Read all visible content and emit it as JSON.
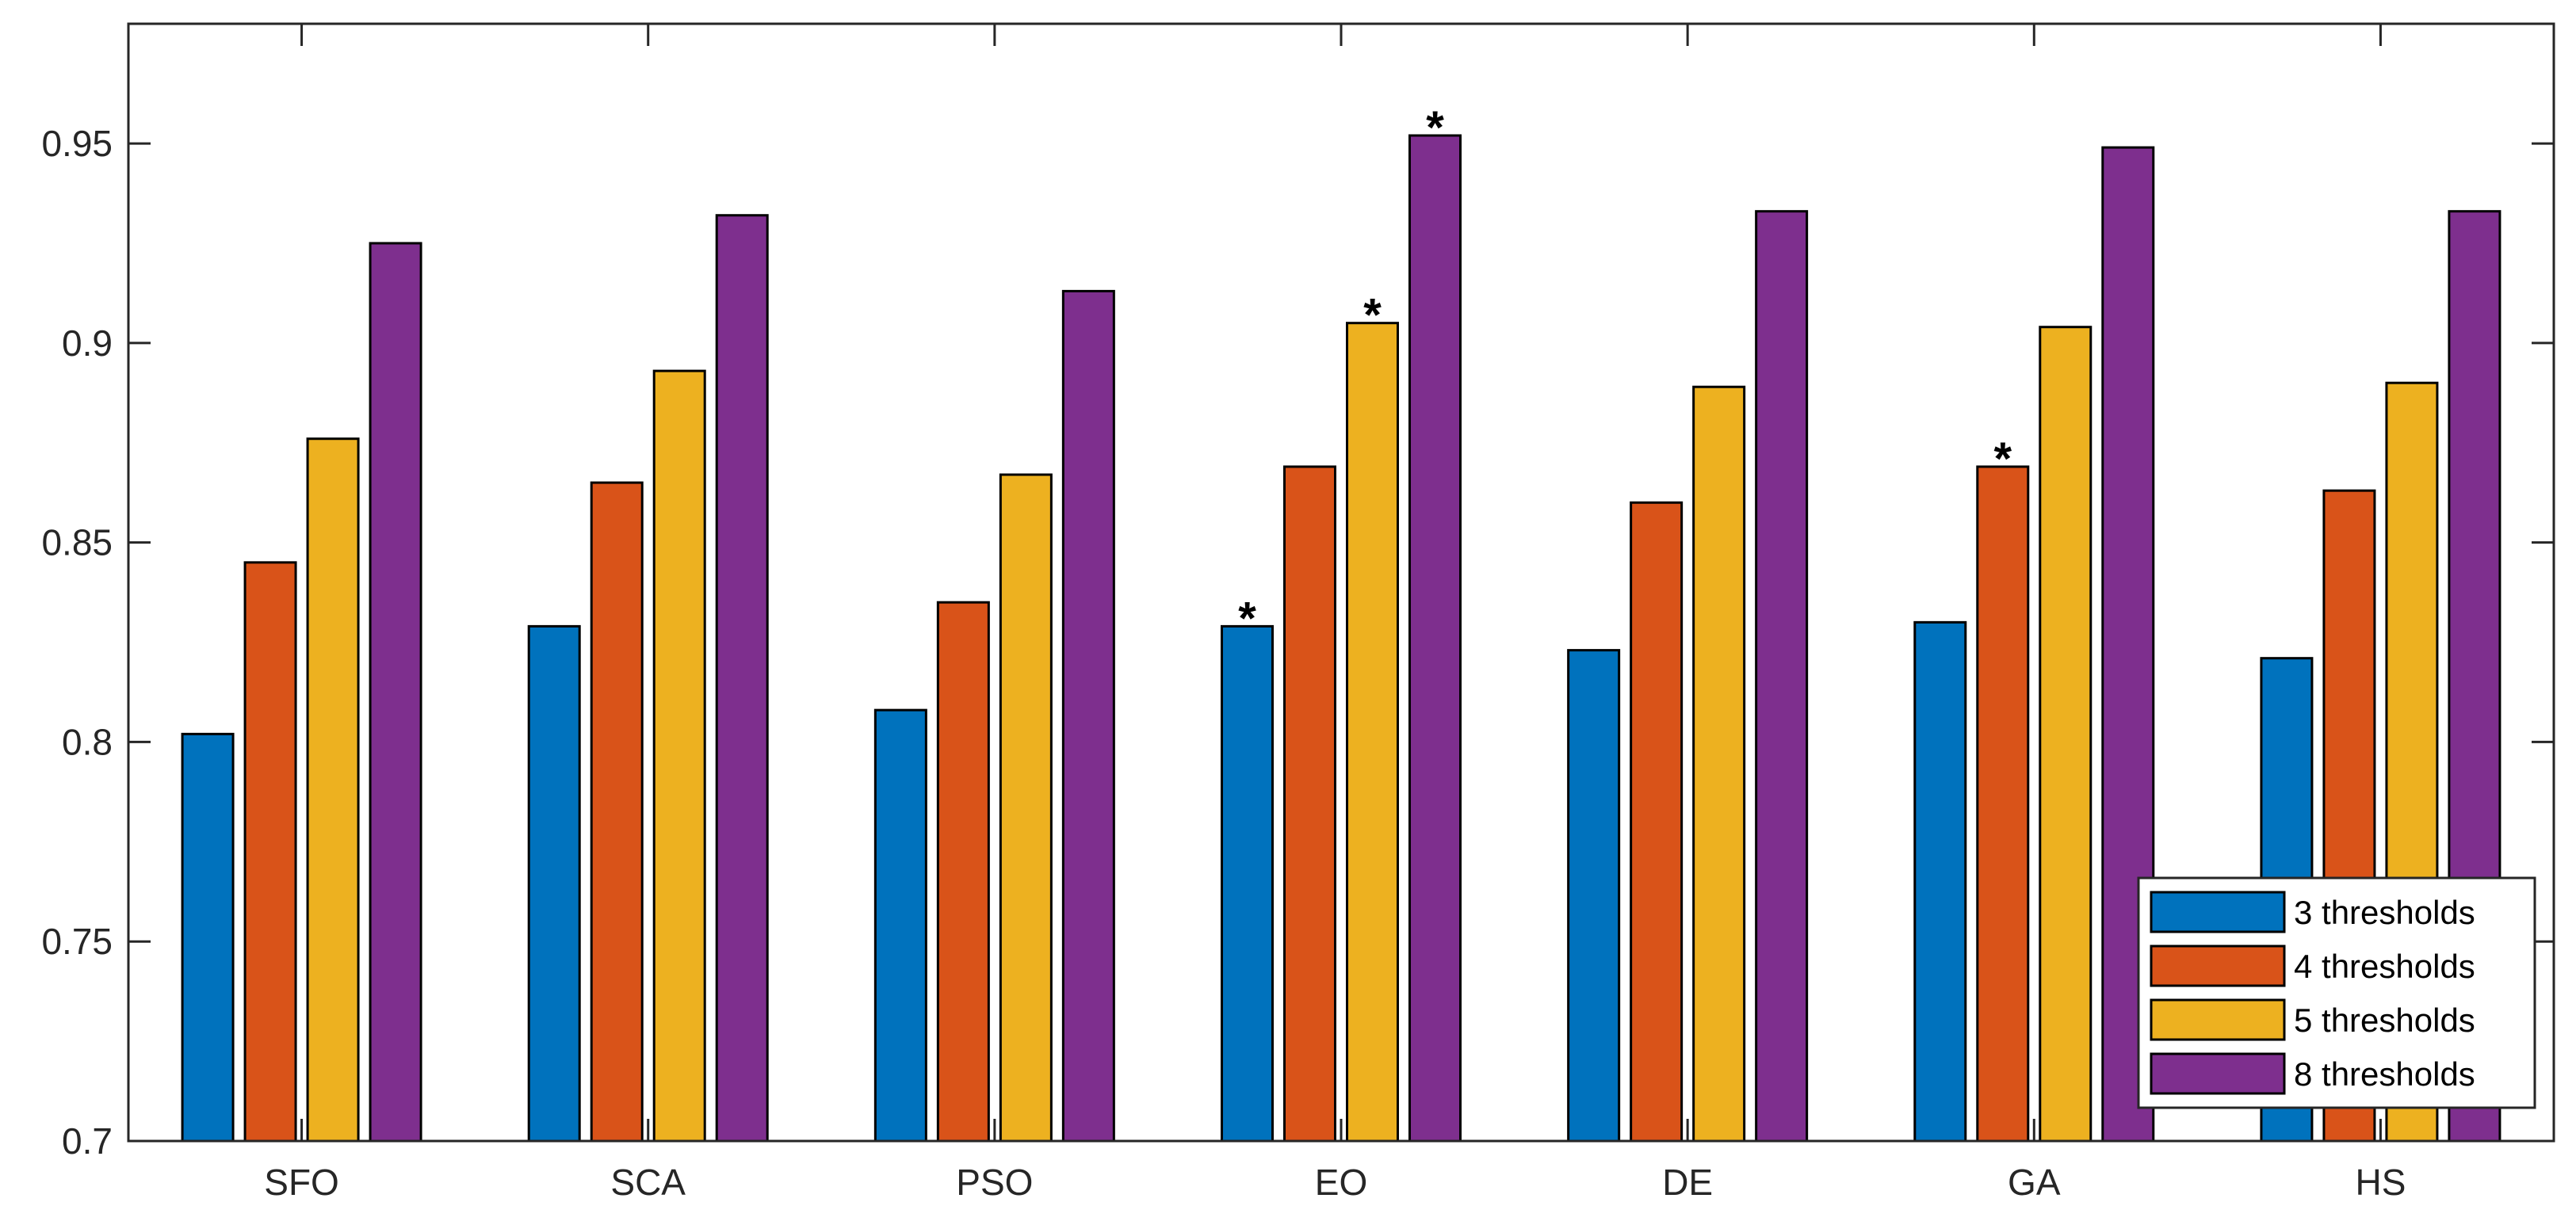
{
  "chart_data": {
    "type": "bar",
    "title": "",
    "xlabel": "",
    "ylabel": "",
    "categories": [
      "SFO",
      "SCA",
      "PSO",
      "EO",
      "DE",
      "GA",
      "HS"
    ],
    "series": [
      {
        "name": "3 thresholds",
        "color": "#0072BD",
        "values": [
          0.802,
          0.829,
          0.808,
          0.829,
          0.823,
          0.83,
          0.821
        ]
      },
      {
        "name": "4 thresholds",
        "color": "#D95319",
        "values": [
          0.845,
          0.865,
          0.835,
          0.869,
          0.86,
          0.869,
          0.863
        ]
      },
      {
        "name": "5 thresholds",
        "color": "#EDB120",
        "values": [
          0.876,
          0.893,
          0.867,
          0.905,
          0.889,
          0.904,
          0.89
        ]
      },
      {
        "name": "8 thresholds",
        "color": "#7E2F8E",
        "values": [
          0.925,
          0.932,
          0.913,
          0.952,
          0.933,
          0.949,
          0.933
        ]
      }
    ],
    "ylim": [
      0.7,
      0.98
    ],
    "yticks": [
      0.7,
      0.75,
      0.8,
      0.85,
      0.9,
      0.95
    ],
    "ytick_labels": [
      "0.7",
      "0.75",
      "0.8",
      "0.85",
      "0.9",
      "0.95"
    ],
    "annotations": [
      {
        "category": "EO",
        "series": "3 thresholds",
        "text": "*"
      },
      {
        "category": "EO",
        "series": "5 thresholds",
        "text": "*"
      },
      {
        "category": "EO",
        "series": "8 thresholds",
        "text": "*"
      },
      {
        "category": "GA",
        "series": "4 thresholds",
        "text": "*"
      }
    ],
    "grid": false,
    "legend_position": "bottom-right"
  }
}
